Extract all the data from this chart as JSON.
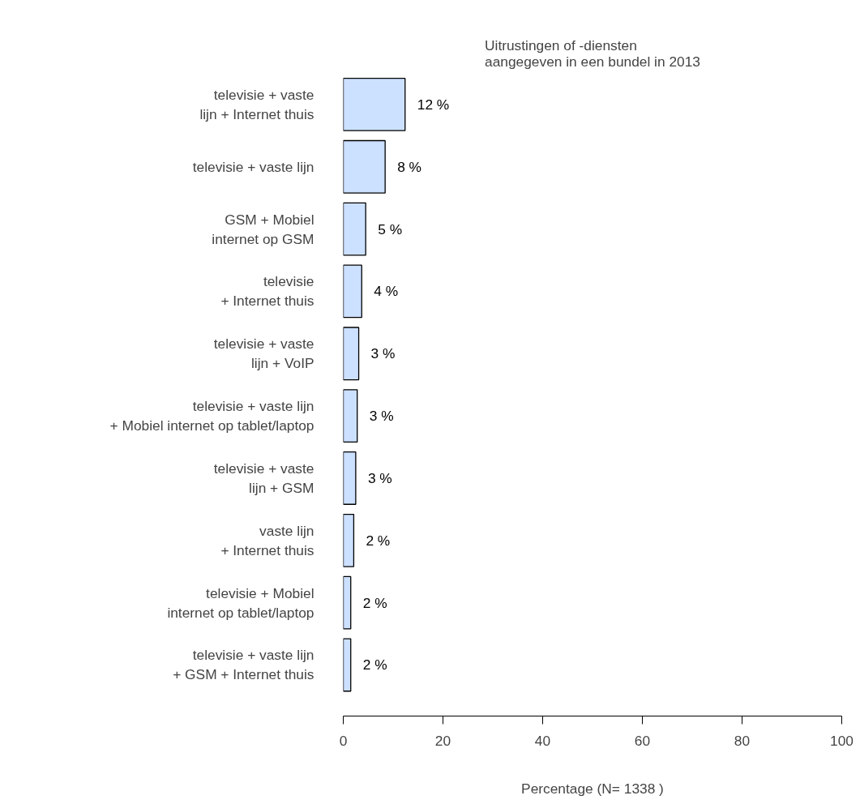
{
  "chart_data": {
    "type": "bar",
    "orientation": "horizontal",
    "title": "Uitrustingen of -diensten\naangegeven in een bundel in 2013",
    "xlabel": "Percentage (N= 1338 )",
    "categories": [
      "televisie + vaste\nlijn + Internet thuis",
      "televisie + vaste lijn",
      "GSM + Mobiel\ninternet op GSM",
      "televisie\n+ Internet thuis",
      "televisie + vaste\nlijn + VoIP",
      "televisie + vaste lijn\n+ Mobiel internet op tablet/laptop",
      "televisie + vaste\nlijn + GSM",
      "vaste lijn\n+ Internet thuis",
      "televisie + Mobiel\ninternet op tablet/laptop",
      "televisie + vaste lijn\n+ GSM + Internet thuis"
    ],
    "values": [
      12.4,
      8.4,
      4.5,
      3.7,
      3.1,
      2.8,
      2.5,
      2.1,
      1.5,
      1.5
    ],
    "value_labels": [
      "12 %",
      "8 %",
      "5 %",
      "4 %",
      "3 %",
      "3 %",
      "3 %",
      "2 %",
      "2 %",
      "2 %"
    ],
    "color": "#cce0ff",
    "xlim": [
      0,
      100
    ],
    "xticks": [
      0,
      20,
      40,
      60,
      80,
      100
    ],
    "grid": false
  }
}
